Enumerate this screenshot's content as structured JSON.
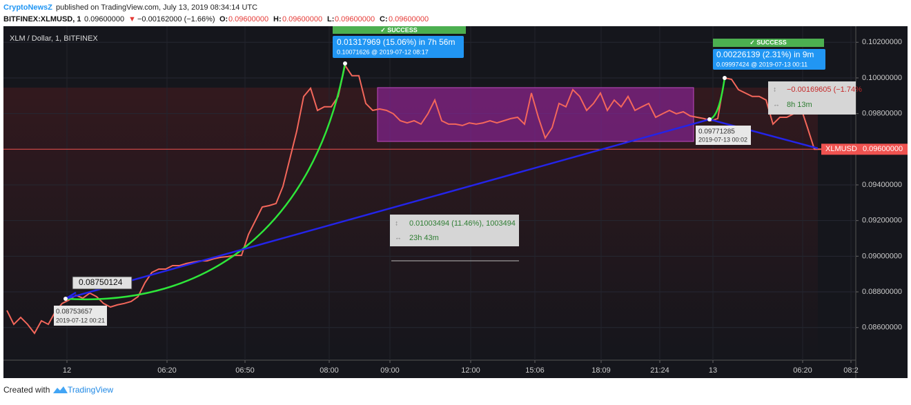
{
  "header": {
    "author": "CryptoNewsZ",
    "published": "published on TradingView.com, July 13, 2019 08:34:14 UTC"
  },
  "ticker": {
    "symbol": "BITFINEX:XLMUSD, 1",
    "price": "0.09600000",
    "arrow": "▼",
    "change": "−0.00162000 (−1.66%)",
    "o_label": "O:",
    "o": "0.09600000",
    "h_label": "H:",
    "h": "0.09600000",
    "l_label": "L:",
    "l": "0.09600000",
    "c_label": "C:",
    "c": "0.09600000"
  },
  "chart_data": {
    "type": "line",
    "series": [
      {
        "name": "XLM / Dollar, 1, BITFINEX",
        "color": "#f4675b",
        "x": [
          0,
          1,
          2,
          3,
          4,
          5,
          6,
          7,
          8,
          9,
          10,
          11,
          12,
          13,
          14,
          15,
          16,
          17,
          18,
          19,
          20,
          21,
          22,
          23,
          24,
          25,
          26,
          27,
          28,
          29,
          30,
          31,
          32,
          33,
          34,
          35,
          36,
          37,
          38,
          39,
          40,
          41,
          42,
          43,
          44,
          45,
          46,
          47,
          48,
          49,
          50,
          51,
          52,
          53,
          54,
          55,
          56,
          57,
          58,
          59,
          60,
          61,
          62,
          63,
          64,
          65,
          66,
          67,
          68,
          69,
          70,
          71,
          72,
          73,
          74,
          75,
          76,
          77,
          78,
          79,
          80,
          81,
          82,
          83,
          84,
          85,
          86,
          87,
          88,
          89,
          90,
          91,
          92,
          93,
          94,
          95,
          96,
          97,
          98,
          99,
          100,
          101,
          102,
          103,
          104,
          105,
          106,
          107,
          108,
          109,
          110,
          111,
          112,
          113,
          114,
          115,
          116,
          117,
          118
        ],
        "values": [
          0.08696,
          0.08618,
          0.08657,
          0.08618,
          0.08568,
          0.08638,
          0.08618,
          0.08688,
          0.08735,
          0.08754,
          0.08781,
          0.08765,
          0.08793,
          0.08773,
          0.08735,
          0.08715,
          0.08727,
          0.08735,
          0.08746,
          0.08773,
          0.08851,
          0.08909,
          0.08928,
          0.08928,
          0.08947,
          0.08947,
          0.08959,
          0.08967,
          0.08974,
          0.08974,
          0.08986,
          0.08994,
          0.08998,
          0.09005,
          0.09005,
          0.09122,
          0.09199,
          0.09276,
          0.09284,
          0.09296,
          0.09392,
          0.09547,
          0.09702,
          0.09896,
          0.09942,
          0.09818,
          0.09838,
          0.09838,
          0.09896,
          0.1007,
          0.10012,
          0.10012,
          0.09857,
          0.09818,
          0.09826,
          0.09818,
          0.09799,
          0.0976,
          0.09748,
          0.0976,
          0.09741,
          0.09799,
          0.09876,
          0.0976,
          0.09741,
          0.09741,
          0.09733,
          0.09748,
          0.09741,
          0.09748,
          0.0976,
          0.09748,
          0.0976,
          0.09772,
          0.09779,
          0.09741,
          0.09915,
          0.09779,
          0.09663,
          0.09721,
          0.09857,
          0.09838,
          0.09934,
          0.09896,
          0.09818,
          0.09857,
          0.09915,
          0.09818,
          0.09876,
          0.09838,
          0.09896,
          0.09818,
          0.09838,
          0.09857,
          0.09779,
          0.09799,
          0.09818,
          0.09799,
          0.0981,
          0.09787,
          0.09779,
          0.09772,
          0.0976,
          0.09772,
          0.1,
          0.09992,
          0.09934,
          0.09915,
          0.09896,
          0.09896,
          0.09876,
          0.09741,
          0.09779,
          0.09779,
          0.09799,
          0.09838,
          0.09721,
          0.096,
          0.096
        ]
      }
    ],
    "xlim": [
      -0.5,
      123
    ],
    "xticks": [
      {
        "value": 8.7,
        "label": "12"
      },
      {
        "value": 23.2,
        "label": "06:20"
      },
      {
        "value": 34.5,
        "label": "06:50"
      },
      {
        "value": 46.7,
        "label": "08:00"
      },
      {
        "value": 55.5,
        "label": "09:00"
      },
      {
        "value": 67.2,
        "label": "12:00"
      },
      {
        "value": 76.5,
        "label": "15:06"
      },
      {
        "value": 86.1,
        "label": "18:09"
      },
      {
        "value": 94.6,
        "label": "21:24"
      },
      {
        "value": 102.3,
        "label": "13"
      },
      {
        "value": 115.3,
        "label": "06:20"
      },
      {
        "value": 122.3,
        "label": "08:2"
      }
    ],
    "ylim": [
      0.08417,
      0.1029
    ],
    "yticks": [
      {
        "value": 0.086,
        "label": "0.08600000"
      },
      {
        "value": 0.088,
        "label": "0.08800000"
      },
      {
        "value": 0.09,
        "label": "0.09000000"
      },
      {
        "value": 0.092,
        "label": "0.09200000"
      },
      {
        "value": 0.094,
        "label": "0.09400000"
      },
      {
        "value": 0.098,
        "label": "0.09800000"
      },
      {
        "value": 0.1,
        "label": "0.10000000"
      },
      {
        "value": 0.102,
        "label": "0.10200000"
      }
    ],
    "grid": true,
    "price_line": {
      "name": "XLMUSD",
      "value": 0.096,
      "label": "0.09600000",
      "color": "#ef5350"
    },
    "annotations": {
      "success1": "✓ SUCCESS",
      "gain1": "0.01317969 (15.06%) in 7h 56m",
      "target1": "0.10071626 @ 2019-07-12 08:17",
      "success2": "✓ SUCCESS",
      "gain2": "0.00226139 (2.31%) in 9m",
      "target2": "0.09997424 @ 2019-07-13 00:11",
      "cursor": "0.08750124",
      "start_price": "0.08753657",
      "start_date": "2019-07-12 00:21",
      "mid_price": "0.09771285",
      "mid_date": "2019-07-13 00:02",
      "range1": "0.01003494 (11.46%), 1003494",
      "span1": "23h 43m",
      "range2": "−0.00169605 (−1.74%",
      "span2": "8h 13m"
    }
  },
  "footer": {
    "created": "Created with",
    "brand": "TradingView"
  }
}
